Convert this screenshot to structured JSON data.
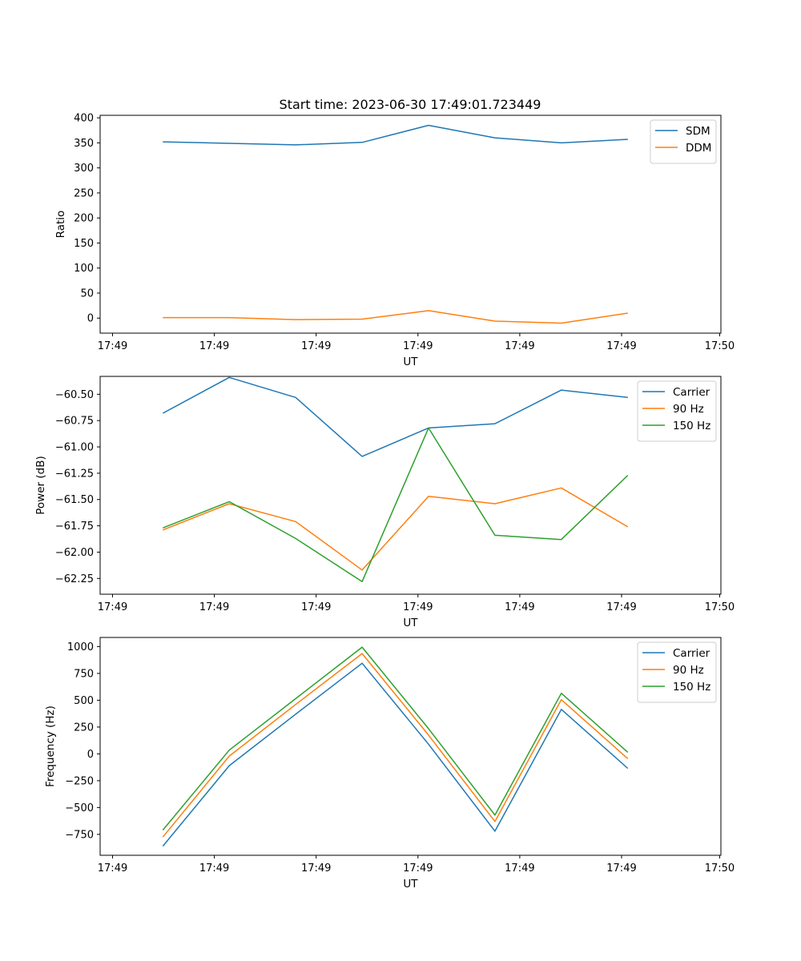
{
  "title": "Start time: 2023-06-30 17:49:01.723449",
  "chart_data": [
    {
      "type": "line",
      "xlabel": "UT",
      "ylabel": "Ratio",
      "x_tick_labels": [
        "17:49",
        "17:49",
        "17:49",
        "17:49",
        "17:49",
        "17:49",
        "17:50"
      ],
      "y_ticks": [
        0,
        50,
        100,
        150,
        200,
        250,
        300,
        350,
        400
      ],
      "y_tick_labels": [
        "0",
        "50",
        "100",
        "150",
        "200",
        "250",
        "300",
        "350",
        "400"
      ],
      "ylim": [
        -30,
        405
      ],
      "legend_position": "top-right",
      "grid": false,
      "series": [
        {
          "name": "SDM",
          "color": "#1f77b4",
          "values": [
            352,
            349,
            346,
            351,
            385,
            360,
            350,
            357
          ]
        },
        {
          "name": "DDM",
          "color": "#ff7f0e",
          "values": [
            1,
            1,
            -3,
            -2,
            15,
            -6,
            -10,
            10
          ]
        }
      ]
    },
    {
      "type": "line",
      "xlabel": "UT",
      "ylabel": "Power (dB)",
      "x_tick_labels": [
        "17:49",
        "17:49",
        "17:49",
        "17:49",
        "17:49",
        "17:49",
        "17:50"
      ],
      "y_ticks": [
        -62.25,
        -62.0,
        -61.75,
        -61.5,
        -61.25,
        -61.0,
        -60.75,
        -60.5
      ],
      "y_tick_labels": [
        "−62.25",
        "−62.00",
        "−61.75",
        "−61.50",
        "−61.25",
        "−61.00",
        "−60.75",
        "−60.50"
      ],
      "ylim": [
        -62.4,
        -60.33
      ],
      "legend_position": "top-right",
      "grid": false,
      "series": [
        {
          "name": "Carrier",
          "color": "#1f77b4",
          "values": [
            -60.68,
            -60.34,
            -60.53,
            -61.09,
            -60.82,
            -60.78,
            -60.46,
            -60.53
          ]
        },
        {
          "name": "90 Hz",
          "color": "#ff7f0e",
          "values": [
            -61.79,
            -61.54,
            -61.71,
            -62.17,
            -61.47,
            -61.54,
            -61.39,
            -61.76
          ]
        },
        {
          "name": "150 Hz",
          "color": "#2ca02c",
          "values": [
            -61.77,
            -61.52,
            -61.87,
            -62.28,
            -60.82,
            -61.84,
            -61.88,
            -61.27
          ]
        }
      ]
    },
    {
      "type": "line",
      "xlabel": "UT",
      "ylabel": "Frequency (Hz)",
      "x_tick_labels": [
        "17:49",
        "17:49",
        "17:49",
        "17:49",
        "17:49",
        "17:49",
        "17:50"
      ],
      "y_ticks": [
        -750,
        -500,
        -250,
        0,
        250,
        500,
        750,
        1000
      ],
      "y_tick_labels": [
        "−750",
        "−500",
        "−250",
        "0",
        "250",
        "500",
        "750",
        "1000"
      ],
      "ylim": [
        -945,
        1085
      ],
      "legend_position": "top-right",
      "grid": false,
      "series": [
        {
          "name": "Carrier",
          "color": "#1f77b4",
          "values": [
            -860,
            -110,
            370,
            845,
            90,
            -720,
            415,
            -135
          ]
        },
        {
          "name": "90 Hz",
          "color": "#ff7f0e",
          "values": [
            -775,
            -20,
            460,
            935,
            175,
            -630,
            505,
            -45
          ]
        },
        {
          "name": "150 Hz",
          "color": "#2ca02c",
          "values": [
            -710,
            35,
            515,
            995,
            235,
            -570,
            565,
            15
          ]
        }
      ]
    }
  ]
}
